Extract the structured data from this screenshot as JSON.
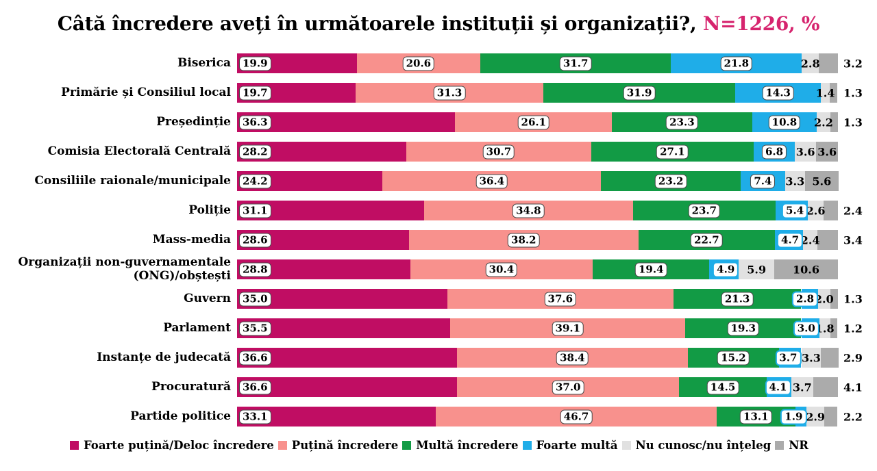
{
  "title": {
    "main": "Câtă încredere aveți în următoarele instituții și organizații?,",
    "suffix": " N=1226, %",
    "accent_color": "#D6246E"
  },
  "chart_data": {
    "type": "bar",
    "stacked": true,
    "orientation": "horizontal",
    "unit": "%",
    "N": 1226,
    "xlim": [
      0,
      100
    ],
    "legend_position": "bottom",
    "label_pill_border_color": "#4a4a4a",
    "small_blue_pill_border_color": "#1FADE8",
    "series": [
      {
        "name": "Foarte puțină/Deloc încredere",
        "color": "#C00D63"
      },
      {
        "name": "Puțină încredere",
        "color": "#F8918D"
      },
      {
        "name": "Multă încredere",
        "color": "#129B45"
      },
      {
        "name": "Foarte multă",
        "color": "#1FADE8"
      },
      {
        "name": "Nu cunosc/nu înțeleg",
        "color": "#E1E1E1"
      },
      {
        "name": "NR",
        "color": "#ABABAB"
      }
    ],
    "rows": [
      {
        "label": "Biserica",
        "values": [
          19.9,
          20.6,
          31.7,
          21.8,
          2.8,
          3.2
        ],
        "nr_label_outside": true
      },
      {
        "label": "Primărie și Consiliul local",
        "values": [
          19.7,
          31.3,
          31.9,
          14.3,
          1.4,
          1.3
        ],
        "nr_label_outside": true
      },
      {
        "label": "Președinție",
        "values": [
          36.3,
          26.1,
          23.3,
          10.8,
          2.2,
          1.3
        ],
        "nr_label_outside": true
      },
      {
        "label": "Comisia Electorală Centrală",
        "values": [
          28.2,
          30.7,
          27.1,
          6.8,
          3.6,
          3.6
        ],
        "nr_label_outside": false
      },
      {
        "label": "Consiliile raionale/municipale",
        "values": [
          24.2,
          36.4,
          23.2,
          7.4,
          3.3,
          5.6
        ],
        "nr_label_outside": false
      },
      {
        "label": "Poliție",
        "values": [
          31.1,
          34.8,
          23.7,
          5.4,
          2.6,
          2.4
        ],
        "nr_label_outside": true
      },
      {
        "label": "Mass-media",
        "values": [
          28.6,
          38.2,
          22.7,
          4.7,
          2.4,
          3.4
        ],
        "nr_label_outside": true
      },
      {
        "label": "Organizații non-guvernamentale (ONG)/obștești",
        "values": [
          28.8,
          30.4,
          19.4,
          4.9,
          5.9,
          10.6
        ],
        "nr_label_outside": false
      },
      {
        "label": "Guvern",
        "values": [
          35.0,
          37.6,
          21.3,
          2.8,
          2.0,
          1.3
        ],
        "nr_label_outside": true
      },
      {
        "label": "Parlament",
        "values": [
          35.5,
          39.1,
          19.3,
          3.0,
          1.8,
          1.2
        ],
        "nr_label_outside": true
      },
      {
        "label": "Instanțe de judecată",
        "values": [
          36.6,
          38.4,
          15.2,
          3.7,
          3.3,
          2.9
        ],
        "nr_label_outside": true
      },
      {
        "label": "Procuratură",
        "values": [
          36.6,
          37.0,
          14.5,
          4.1,
          3.7,
          4.1
        ],
        "nr_label_outside": true
      },
      {
        "label": "Partide politice",
        "values": [
          33.1,
          46.7,
          13.1,
          1.9,
          2.9,
          2.2
        ],
        "nr_label_outside": true
      }
    ]
  }
}
